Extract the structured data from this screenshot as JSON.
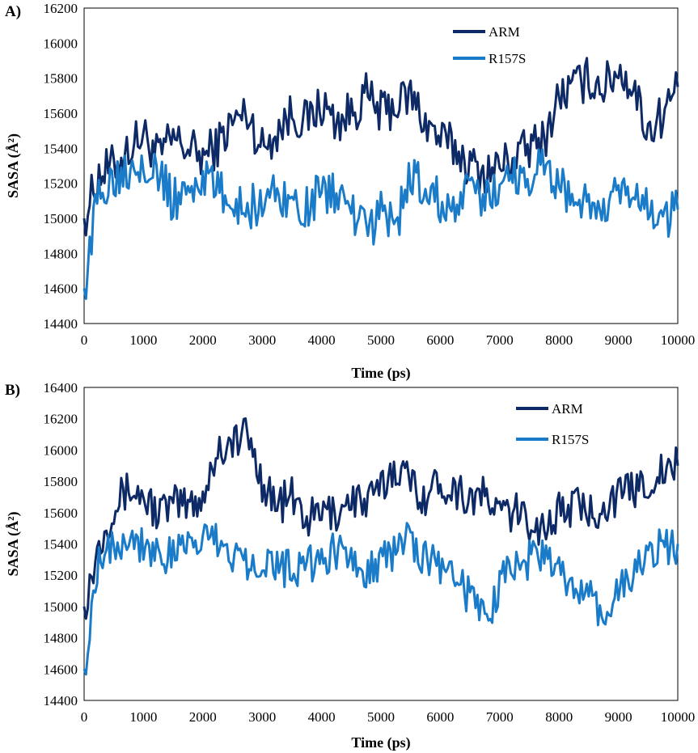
{
  "chart_data": [
    {
      "type": "line",
      "panel_label": "A)",
      "xlabel": "Time (ps)",
      "ylabel": "SASA (Å²)",
      "xlim": [
        0,
        10000
      ],
      "ylim": [
        14400,
        16200
      ],
      "xticks": [
        "0",
        "1000",
        "2000",
        "3000",
        "4000",
        "5000",
        "6000",
        "7000",
        "8000",
        "9000",
        "10000"
      ],
      "yticks": [
        "14400",
        "14600",
        "14800",
        "15000",
        "15200",
        "15400",
        "15600",
        "15800",
        "16000",
        "16200"
      ],
      "grid": false,
      "legend_position": "top-right",
      "series": [
        {
          "name": "ARM",
          "color": "#0d2a66",
          "x": [
            0,
            250,
            500,
            750,
            1000,
            1250,
            1500,
            1750,
            2000,
            2250,
            2500,
            2750,
            3000,
            3250,
            3500,
            3750,
            4000,
            4250,
            4500,
            4750,
            5000,
            5250,
            5500,
            5750,
            6000,
            6250,
            6500,
            6750,
            7000,
            7250,
            7500,
            7750,
            8000,
            8250,
            8500,
            8750,
            9000,
            9250,
            9500,
            9750,
            10000
          ],
          "values": [
            15000,
            15250,
            15300,
            15400,
            15480,
            15350,
            15450,
            15400,
            15350,
            15420,
            15550,
            15600,
            15400,
            15500,
            15600,
            15550,
            15650,
            15550,
            15600,
            15700,
            15600,
            15650,
            15700,
            15550,
            15450,
            15400,
            15300,
            15250,
            15300,
            15350,
            15400,
            15450,
            15700,
            15750,
            15800,
            15750,
            15850,
            15750,
            15500,
            15600,
            15750
          ]
        },
        {
          "name": "R157S",
          "color": "#1a7bc9",
          "x": [
            0,
            250,
            500,
            750,
            1000,
            1250,
            1500,
            1750,
            2000,
            2250,
            2500,
            2750,
            3000,
            3250,
            3500,
            3750,
            4000,
            4250,
            4500,
            4750,
            5000,
            5250,
            5500,
            5750,
            6000,
            6250,
            6500,
            6750,
            7000,
            7250,
            7500,
            7750,
            8000,
            8250,
            8500,
            8750,
            9000,
            9250,
            9500,
            9750,
            10000
          ],
          "values": [
            14600,
            15150,
            15250,
            15300,
            15350,
            15250,
            15100,
            15150,
            15250,
            15150,
            15100,
            15050,
            15100,
            15150,
            15100,
            15050,
            15150,
            15150,
            15050,
            14900,
            15050,
            14950,
            15250,
            15150,
            15100,
            15050,
            15150,
            15100,
            15200,
            15250,
            15250,
            15300,
            15200,
            15100,
            15100,
            15000,
            15150,
            15100,
            15050,
            15000,
            15050
          ]
        }
      ]
    },
    {
      "type": "line",
      "panel_label": "B)",
      "xlabel": "Time (ps)",
      "ylabel": "SASA (Å²)",
      "xlim": [
        0,
        10000
      ],
      "ylim": [
        14400,
        16400
      ],
      "xticks": [
        "0",
        "1000",
        "2000",
        "3000",
        "4000",
        "5000",
        "6000",
        "7000",
        "8000",
        "9000",
        "10000"
      ],
      "yticks": [
        "14400",
        "14600",
        "14800",
        "15000",
        "15200",
        "15400",
        "15600",
        "15800",
        "16000",
        "16200",
        "16400"
      ],
      "grid": false,
      "legend_position": "top-right",
      "series": [
        {
          "name": "ARM",
          "color": "#0d2a66",
          "x": [
            0,
            250,
            500,
            750,
            1000,
            1250,
            1500,
            1750,
            2000,
            2250,
            2500,
            2750,
            3000,
            3250,
            3500,
            3750,
            4000,
            4250,
            4500,
            4750,
            5000,
            5250,
            5500,
            5750,
            6000,
            6250,
            6500,
            6750,
            7000,
            7250,
            7500,
            7750,
            8000,
            8250,
            8500,
            8750,
            9000,
            9250,
            9500,
            9750,
            10000
          ],
          "values": [
            15000,
            15400,
            15650,
            15750,
            15700,
            15600,
            15650,
            15650,
            15700,
            16000,
            16050,
            16100,
            15800,
            15650,
            15700,
            15550,
            15600,
            15600,
            15700,
            15650,
            15750,
            15900,
            15800,
            15700,
            15800,
            15750,
            15700,
            15700,
            15600,
            15600,
            15550,
            15500,
            15600,
            15650,
            15600,
            15650,
            15700,
            15750,
            15800,
            15850,
            15900
          ]
        },
        {
          "name": "R157S",
          "color": "#1a7bc9",
          "x": [
            0,
            250,
            500,
            750,
            1000,
            1250,
            1500,
            1750,
            2000,
            2250,
            2500,
            2750,
            3000,
            3250,
            3500,
            3750,
            4000,
            4250,
            4500,
            4750,
            5000,
            5250,
            5500,
            5750,
            6000,
            6250,
            6500,
            6750,
            7000,
            7250,
            7500,
            7750,
            8000,
            8250,
            8500,
            8750,
            9000,
            9250,
            9500,
            9750,
            10000
          ],
          "values": [
            14600,
            15350,
            15400,
            15450,
            15400,
            15350,
            15300,
            15400,
            15450,
            15400,
            15350,
            15300,
            15300,
            15250,
            15250,
            15250,
            15300,
            15350,
            15300,
            15250,
            15300,
            15350,
            15450,
            15300,
            15250,
            15200,
            15050,
            14900,
            15150,
            15250,
            15300,
            15350,
            15200,
            15100,
            15050,
            14950,
            15100,
            15200,
            15300,
            15400,
            15400
          ]
        }
      ]
    }
  ]
}
